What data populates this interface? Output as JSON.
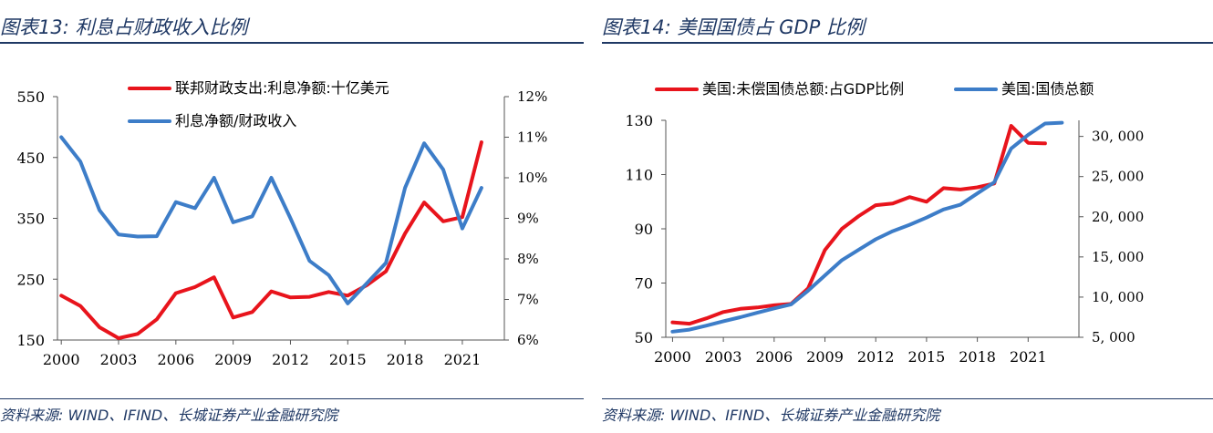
{
  "colors": {
    "red": "#e8141c",
    "blue": "#3d7dc8",
    "heading": "#1f3864"
  },
  "chart_data": [
    {
      "type": "line",
      "title": "图表13: 利息占财政收入比例",
      "source": "资料来源: WIND、IFIND、长城证券产业金融研究院",
      "x": [
        2000,
        2001,
        2002,
        2003,
        2004,
        2005,
        2006,
        2007,
        2008,
        2009,
        2010,
        2011,
        2012,
        2013,
        2014,
        2015,
        2016,
        2017,
        2018,
        2019,
        2020,
        2021,
        2022
      ],
      "x_ticks": [
        "2000",
        "2003",
        "2006",
        "2009",
        "2012",
        "2015",
        "2018",
        "2021"
      ],
      "y_left": {
        "ticks": [
          "150",
          "250",
          "350",
          "450",
          "550"
        ],
        "range": [
          150,
          550
        ]
      },
      "y_right": {
        "ticks": [
          "6%",
          "7%",
          "8%",
          "9%",
          "10%",
          "11%",
          "12%"
        ],
        "range": [
          6,
          12
        ]
      },
      "series": [
        {
          "name": "联邦财政支出:利息净额:十亿美元",
          "axis": "left",
          "color": "#e8141c",
          "values": [
            223,
            206,
            171,
            153,
            160,
            184,
            227,
            237,
            253,
            187,
            196,
            230,
            220,
            221,
            229,
            223,
            240,
            263,
            325,
            376,
            345,
            352,
            475
          ]
        },
        {
          "name": "利息净额/财政收入",
          "axis": "right",
          "color": "#3d7dc8",
          "values": [
            11.0,
            10.4,
            9.2,
            8.6,
            8.55,
            8.56,
            9.4,
            9.25,
            10.0,
            8.9,
            9.05,
            10.0,
            9.0,
            7.95,
            7.6,
            6.9,
            7.4,
            7.9,
            9.75,
            10.85,
            10.2,
            8.75,
            9.75
          ]
        }
      ],
      "legend": "top"
    },
    {
      "type": "line",
      "title": "图表14: 美国国债占 GDP 比例",
      "source": "资料来源: WIND、IFIND、长城证券产业金融研究院",
      "x": [
        2000,
        2001,
        2002,
        2003,
        2004,
        2005,
        2006,
        2007,
        2008,
        2009,
        2010,
        2011,
        2012,
        2013,
        2014,
        2015,
        2016,
        2017,
        2018,
        2019,
        2020,
        2021,
        2022,
        2023
      ],
      "x_ticks": [
        "2000",
        "2003",
        "2006",
        "2009",
        "2012",
        "2015",
        "2018",
        "2021"
      ],
      "y_left": {
        "ticks": [
          "50",
          "70",
          "90",
          "110",
          "130"
        ],
        "range": [
          50,
          130
        ]
      },
      "y_right": {
        "ticks": [
          "5, 000",
          "10, 000",
          "15, 000",
          "20, 000",
          "25, 000",
          "30, 000"
        ],
        "range": [
          5000,
          32000
        ]
      },
      "series": [
        {
          "name": "美国:未偿国债总额:占GDP比例",
          "axis": "left",
          "color": "#e8141c",
          "values": [
            55.5,
            55.0,
            57.0,
            59.3,
            60.5,
            61.0,
            61.8,
            62.3,
            68.0,
            82.2,
            90.0,
            94.7,
            98.7,
            99.3,
            101.7,
            100.0,
            105.0,
            104.5,
            105.3,
            106.7,
            128.0,
            121.7,
            121.5,
            null
          ]
        },
        {
          "name": "美国:国债总额",
          "axis": "right",
          "color": "#3d7dc8",
          "values": [
            5700,
            5950,
            6450,
            7000,
            7500,
            8050,
            8600,
            9100,
            10800,
            12700,
            14600,
            15900,
            17200,
            18200,
            19000,
            19900,
            20900,
            21500,
            22900,
            24300,
            28500,
            30200,
            31600,
            31700
          ]
        }
      ],
      "legend": "top"
    }
  ]
}
